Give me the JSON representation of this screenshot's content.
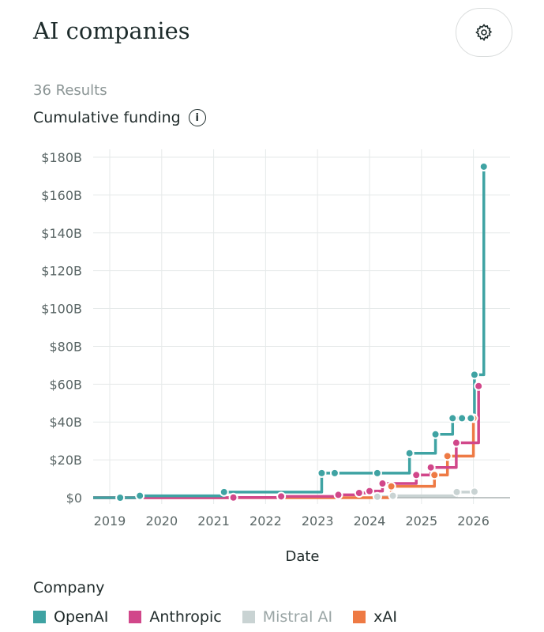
{
  "header": {
    "title": "AI companies",
    "settings_icon": "gear-icon"
  },
  "results": "36 Results",
  "subtitle": "Cumulative funding",
  "info_icon": "i",
  "legend": {
    "title": "Company",
    "items": [
      {
        "name": "OpenAI",
        "color": "#3fa3a3"
      },
      {
        "name": "Anthropic",
        "color": "#d1478a"
      },
      {
        "name": "Mistral AI",
        "color": "#c9d3d3"
      },
      {
        "name": "xAI",
        "color": "#ee7a44"
      }
    ]
  },
  "chart_data": {
    "type": "line",
    "step": "after",
    "title": "Cumulative funding",
    "xlabel": "Date",
    "ylabel": "",
    "xlim": [
      2018.7,
      2026.7
    ],
    "ylim": [
      0,
      180
    ],
    "xticks": [
      2019,
      2020,
      2021,
      2022,
      2023,
      2024,
      2025,
      2026
    ],
    "yticks": [
      0,
      20,
      40,
      60,
      80,
      100,
      120,
      140,
      160,
      180
    ],
    "ytick_labels": [
      "$0",
      "$20B",
      "$40B",
      "$60B",
      "$80B",
      "$100B",
      "$120B",
      "$140B",
      "$160B",
      "$180B"
    ],
    "grid": true,
    "legend": "bottom",
    "series": [
      {
        "name": "OpenAI",
        "color": "#3fa3a3",
        "x": [
          2019.2,
          2019.58,
          2021.2,
          2023.08,
          2023.33,
          2024.15,
          2024.77,
          2025.27,
          2025.6,
          2025.78,
          2025.95,
          2026.02,
          2026.2
        ],
        "y": [
          0,
          1,
          3,
          13,
          13,
          13,
          23.5,
          33.5,
          42,
          42,
          42,
          65,
          175
        ]
      },
      {
        "name": "Anthropic",
        "color": "#d1478a",
        "x": [
          2021.38,
          2022.3,
          2023.4,
          2023.8,
          2024.0,
          2024.25,
          2024.9,
          2025.18,
          2025.67,
          2026.1
        ],
        "y": [
          0.1,
          0.7,
          1.5,
          2.5,
          3.5,
          7.5,
          12,
          16,
          29,
          59
        ]
      },
      {
        "name": "Mistral AI",
        "color": "#c9d3d3",
        "x": [
          2024.15,
          2024.45,
          2025.68,
          2026.02
        ],
        "y": [
          0.5,
          1,
          3,
          3.2
        ]
      },
      {
        "name": "xAI",
        "color": "#ee7a44",
        "x": [
          2024.42,
          2025.25,
          2025.5,
          2026.0
        ],
        "y": [
          6,
          12,
          22,
          42
        ]
      }
    ]
  }
}
